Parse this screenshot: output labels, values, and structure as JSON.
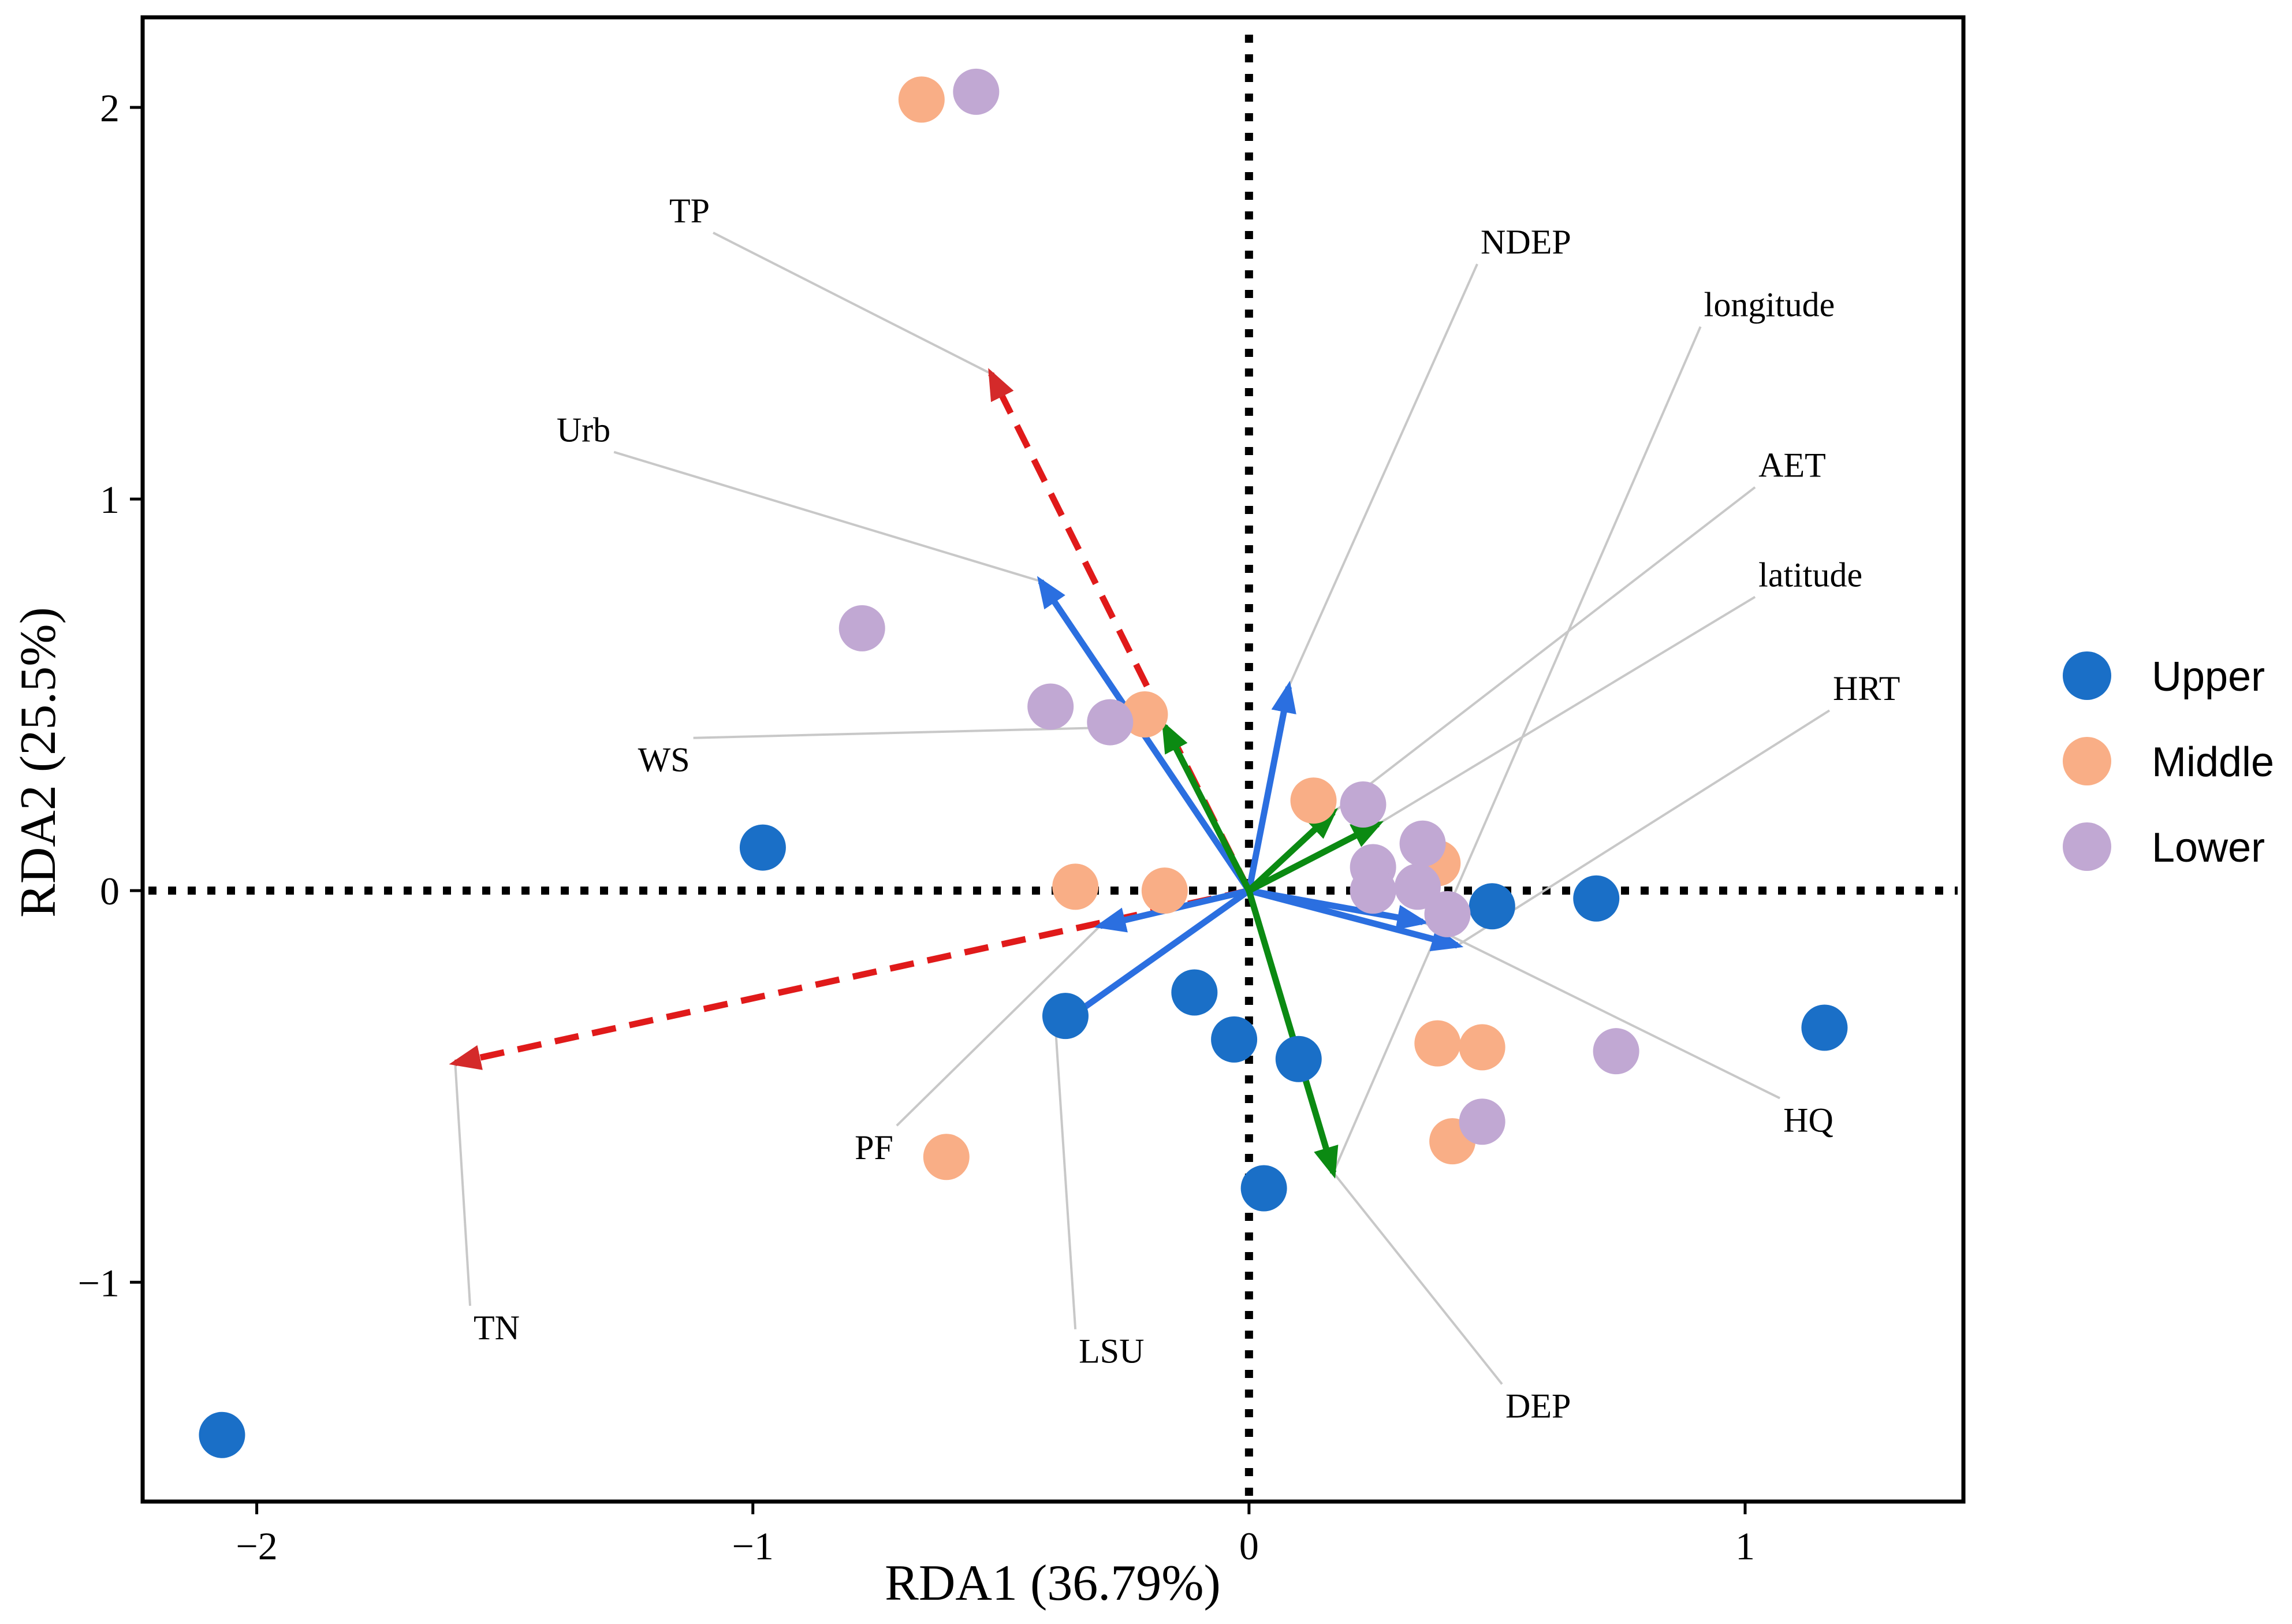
{
  "chart_data": {
    "type": "scatter",
    "title": "",
    "xlabel": "RDA1 (36.79%)",
    "ylabel": "RDA2 (25.5%)",
    "xlim": [
      -2.23,
      1.44
    ],
    "ylim": [
      -1.56,
      2.23
    ],
    "xticks": [
      {
        "value": -2,
        "label": "−2"
      },
      {
        "value": -1,
        "label": "−1"
      },
      {
        "value": 0,
        "label": "0"
      },
      {
        "value": 1,
        "label": "1"
      }
    ],
    "yticks": [
      {
        "value": -1,
        "label": "−1"
      },
      {
        "value": 0,
        "label": "0"
      },
      {
        "value": 1,
        "label": "1"
      },
      {
        "value": 2,
        "label": "2"
      }
    ],
    "grid": false,
    "reference_lines": {
      "x": 0,
      "y": 0,
      "style": "dotted"
    },
    "legend": {
      "position": "right",
      "entries": [
        {
          "name": "Upper",
          "color": "#1a6fc7"
        },
        {
          "name": "Middle",
          "color": "#f9ae86"
        },
        {
          "name": "Lower",
          "color": "#c1a8d3"
        }
      ]
    },
    "series": [
      {
        "name": "Upper",
        "color": "#1a6fc7",
        "points": [
          [
            -2.07,
            -1.39
          ],
          [
            -0.98,
            0.11
          ],
          [
            -0.37,
            -0.32
          ],
          [
            -0.11,
            -0.26
          ],
          [
            -0.03,
            -0.38
          ],
          [
            0.1,
            -0.43
          ],
          [
            0.03,
            -0.76
          ],
          [
            0.49,
            -0.04
          ],
          [
            0.7,
            -0.02
          ],
          [
            1.16,
            -0.35
          ]
        ]
      },
      {
        "name": "Middle",
        "color": "#f9ae86",
        "points": [
          [
            -0.66,
            2.02
          ],
          [
            -0.21,
            0.45
          ],
          [
            -0.35,
            0.01
          ],
          [
            -0.17,
            0.0
          ],
          [
            0.13,
            0.23
          ],
          [
            0.38,
            0.07
          ],
          [
            0.38,
            -0.39
          ],
          [
            0.47,
            -0.4
          ],
          [
            0.41,
            -0.64
          ],
          [
            -0.61,
            -0.68
          ]
        ]
      },
      {
        "name": "Lower",
        "color": "#c1a8d3",
        "points": [
          [
            -0.55,
            2.04
          ],
          [
            -0.78,
            0.67
          ],
          [
            -0.4,
            0.47
          ],
          [
            -0.28,
            0.43
          ],
          [
            0.23,
            0.22
          ],
          [
            0.35,
            0.12
          ],
          [
            0.25,
            0.06
          ],
          [
            0.25,
            0.0
          ],
          [
            0.34,
            0.01
          ],
          [
            0.4,
            -0.06
          ],
          [
            0.47,
            -0.59
          ],
          [
            0.74,
            -0.41
          ]
        ]
      }
    ],
    "arrows": [
      {
        "name": "TP",
        "x": -0.52,
        "y": 1.32,
        "color": "#e01a1a",
        "style": "dashed",
        "label_at": [
          -1.08,
          1.68
        ]
      },
      {
        "name": "TN",
        "x": -1.6,
        "y": -0.44,
        "color": "#e01a1a",
        "style": "dashed",
        "label_at": [
          -1.57,
          -1.06
        ]
      },
      {
        "name": "Urb",
        "x": -0.42,
        "y": 0.79,
        "color": "#2b6fe0",
        "style": "solid",
        "label_at": [
          -1.28,
          1.12
        ]
      },
      {
        "name": "PF",
        "x": -0.3,
        "y": -0.09,
        "color": "#2b6fe0",
        "style": "solid",
        "label_at": [
          -0.71,
          -0.6
        ]
      },
      {
        "name": "LSU",
        "x": -0.39,
        "y": -0.35,
        "color": "#2b6fe0",
        "style": "solid",
        "label_at": [
          -0.35,
          -1.12
        ]
      },
      {
        "name": "NDEP",
        "x": 0.08,
        "y": 0.52,
        "color": "#2b6fe0",
        "style": "solid",
        "label_at": [
          0.46,
          1.6
        ]
      },
      {
        "name": "HQ",
        "x": 0.35,
        "y": -0.08,
        "color": "#2b6fe0",
        "style": "solid",
        "label_at": [
          1.07,
          -0.53
        ]
      },
      {
        "name": "HRT",
        "x": 0.42,
        "y": -0.14,
        "color": "#2b6fe0",
        "style": "solid",
        "label_at": [
          1.17,
          0.46
        ]
      },
      {
        "name": "WS",
        "x": -0.17,
        "y": 0.42,
        "color": "#0b8a12",
        "style": "solid",
        "label_at": [
          -1.12,
          0.39
        ]
      },
      {
        "name": "AET",
        "x": 0.17,
        "y": 0.2,
        "color": "#0b8a12",
        "style": "solid",
        "label_at": [
          1.02,
          1.03
        ]
      },
      {
        "name": "latitude",
        "x": 0.26,
        "y": 0.17,
        "color": "#0b8a12",
        "style": "solid",
        "label_at": [
          1.02,
          0.75
        ]
      },
      {
        "name": "longitude",
        "x": 0.17,
        "y": -0.72,
        "color": "#0b8a12",
        "style": "solid",
        "label_at": [
          0.91,
          1.44
        ]
      },
      {
        "name": "DEP",
        "x": 0.17,
        "y": -0.72,
        "color": "#0b8a12",
        "style": "solid",
        "label_at": [
          0.51,
          -1.26
        ],
        "hidden_arrow": true
      }
    ]
  }
}
